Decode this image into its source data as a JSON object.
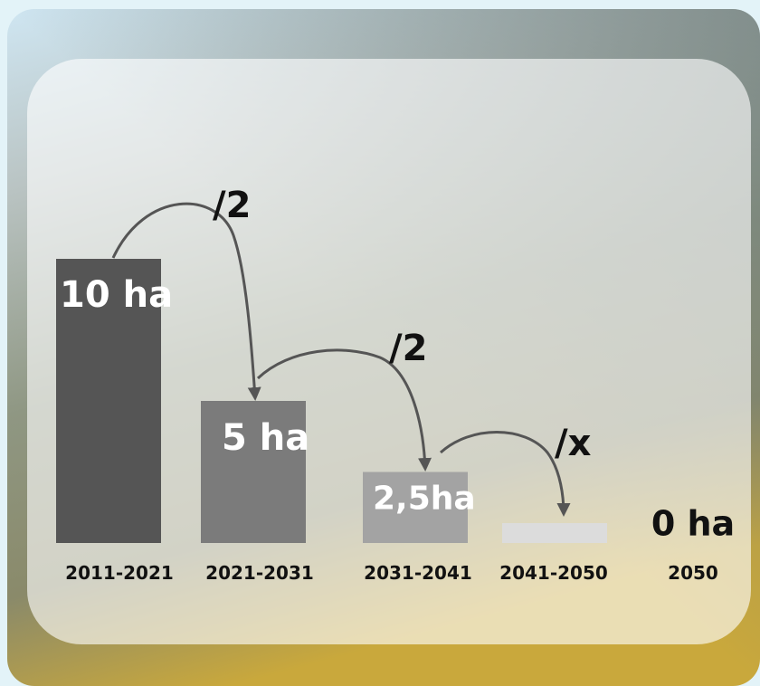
{
  "chart_data": {
    "type": "bar",
    "categories": [
      "2011-2021",
      "2021-2031",
      "2031-2041",
      "2041-2050",
      "2050"
    ],
    "values": [
      10,
      5,
      2.5,
      0.7,
      0
    ],
    "value_labels": [
      "10 ha",
      "5 ha",
      "2,5ha",
      null,
      "0 ha"
    ],
    "colors": [
      "#555555",
      "#7b7b7b",
      "#a3a3a3",
      "#dcdcdc",
      "#dcdcdc"
    ],
    "annotations": [
      "/2",
      "/2",
      "/x"
    ]
  }
}
